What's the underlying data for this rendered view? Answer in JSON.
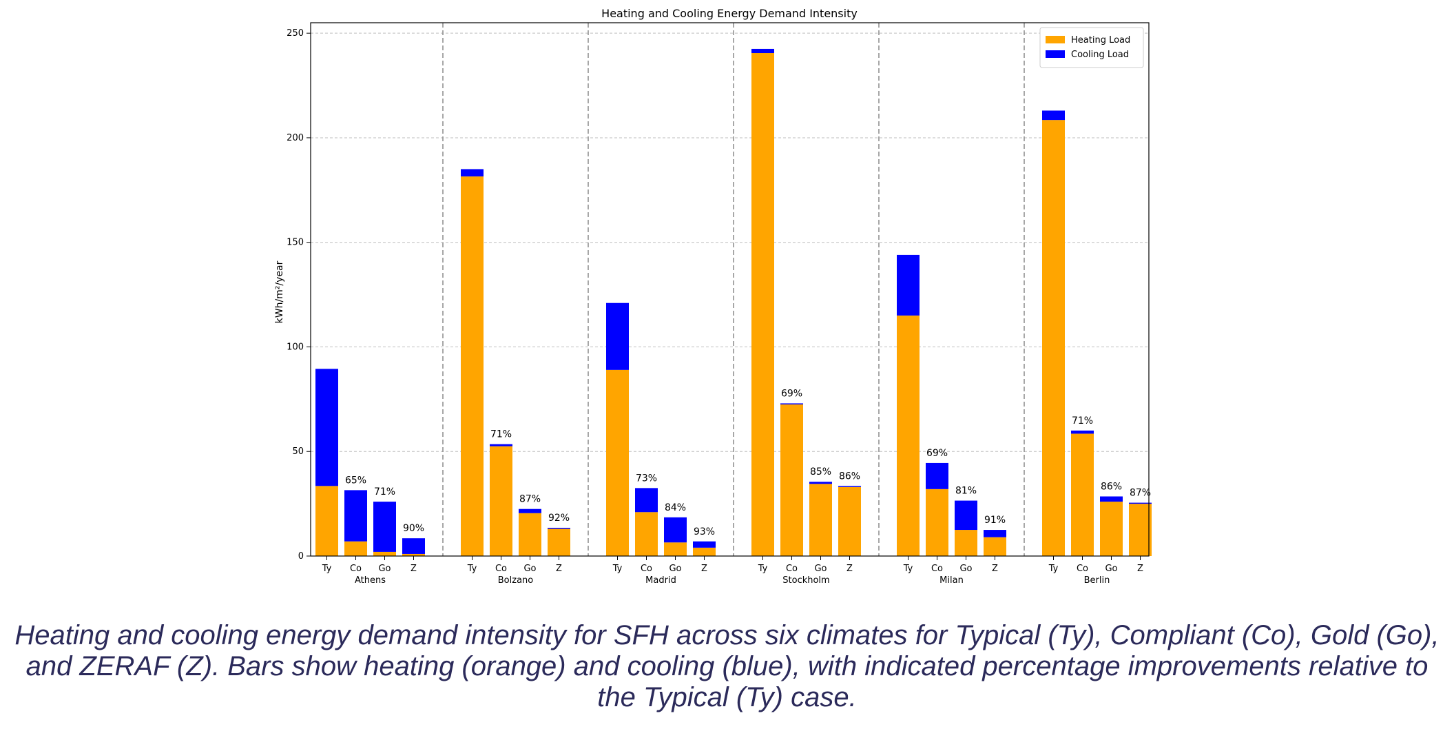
{
  "chart_data": {
    "type": "bar",
    "stacked": true,
    "title": "Heating and Cooling Energy Demand Intensity",
    "ylabel": "kWh/m²/year",
    "xlabel": "",
    "ylim": [
      0,
      255
    ],
    "yticks": [
      0,
      50,
      100,
      150,
      200,
      250
    ],
    "grid": true,
    "legend_position": "top-right",
    "case_labels": [
      "Ty",
      "Co",
      "Go",
      "Z"
    ],
    "groups": [
      "Athens",
      "Bolzano",
      "Madrid",
      "Stockholm",
      "Milan",
      "Berlin"
    ],
    "series": [
      {
        "name": "Heating Load",
        "color": "#FFA500",
        "values": [
          [
            33.5,
            7.0,
            2.0,
            1.0
          ],
          [
            181.5,
            52.5,
            20.5,
            13.0
          ],
          [
            89.0,
            21.0,
            6.5,
            4.0
          ],
          [
            240.5,
            72.5,
            34.5,
            33.0
          ],
          [
            115.0,
            32.0,
            12.5,
            9.0
          ],
          [
            208.5,
            58.5,
            26.0,
            25.0
          ]
        ]
      },
      {
        "name": "Cooling Load",
        "color": "#0000FF",
        "values": [
          [
            56.0,
            24.5,
            24.0,
            7.5
          ],
          [
            3.5,
            1.0,
            2.0,
            0.5
          ],
          [
            32.0,
            11.5,
            12.0,
            3.0
          ],
          [
            2.0,
            0.5,
            1.0,
            0.5
          ],
          [
            29.0,
            12.5,
            14.0,
            3.5
          ],
          [
            4.5,
            1.5,
            2.5,
            0.5
          ]
        ]
      }
    ],
    "annotations": [
      [
        "",
        "65%",
        "71%",
        "90%"
      ],
      [
        "",
        "71%",
        "87%",
        "92%"
      ],
      [
        "",
        "73%",
        "84%",
        "93%"
      ],
      [
        "",
        "69%",
        "85%",
        "86%"
      ],
      [
        "",
        "69%",
        "81%",
        "91%"
      ],
      [
        "",
        "71%",
        "86%",
        "87%"
      ]
    ]
  },
  "caption": "Heating and cooling energy demand intensity for SFH across six climates for Typical (Ty), Compliant (Co), Gold (Go), and ZERAF (Z). Bars show heating (orange) and cooling (blue), with indicated percentage improvements relative to the Typical (Ty) case."
}
